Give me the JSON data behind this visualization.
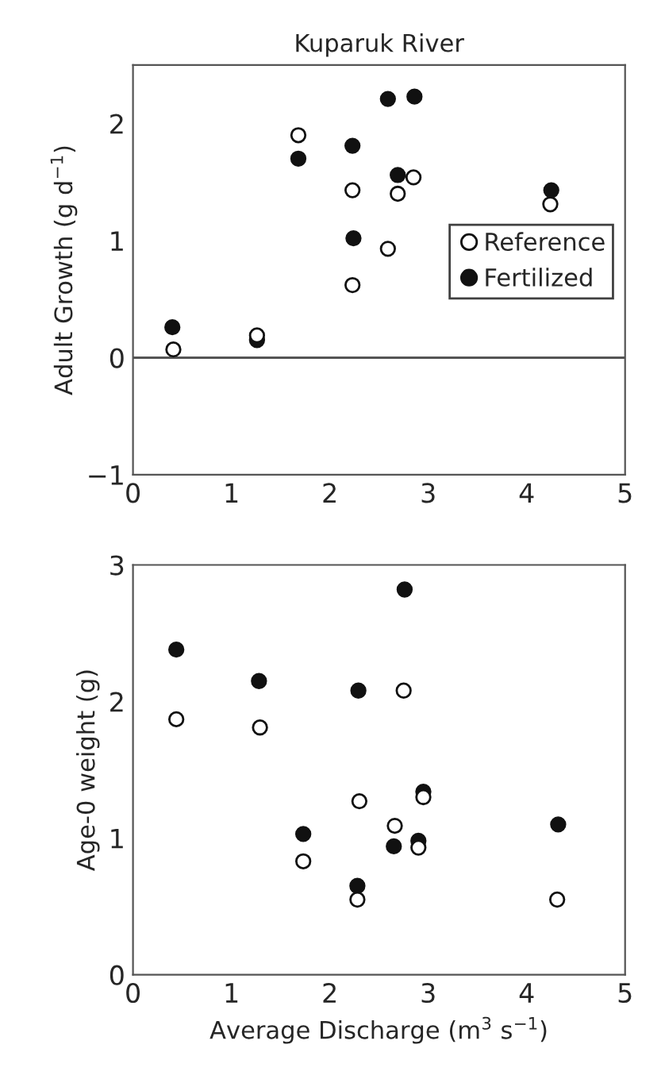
{
  "chart_data": [
    {
      "type": "scatter",
      "title": "Kuparuk River",
      "ylabel": "Adult Growth (g d$^{−1}$)",
      "xlim": [
        0,
        5
      ],
      "xticks": [
        0,
        1,
        2,
        3,
        4,
        5
      ],
      "ylim": [
        -1,
        2.5
      ],
      "yticks": [
        {
          "value": -1,
          "label": "−1"
        },
        0,
        1,
        2
      ],
      "legend": "right",
      "marker": "circle",
      "grid": false,
      "ref_lines": [
        {
          "axis": "y",
          "value": 0,
          "color": "#555555"
        }
      ],
      "series": [
        {
          "name": "Reference",
          "color": "#ffffff",
          "x": [
            0.41,
            1.26,
            1.68,
            2.23,
            2.23,
            2.59,
            2.69,
            2.85,
            4.24
          ],
          "values": [
            0.07,
            0.19,
            1.9,
            1.43,
            0.62,
            0.93,
            1.4,
            1.54,
            1.31
          ]
        },
        {
          "name": "Fertilized",
          "color": "#111111",
          "x": [
            0.4,
            1.26,
            1.68,
            2.23,
            2.24,
            2.59,
            2.86,
            2.69,
            4.25
          ],
          "values": [
            0.26,
            0.15,
            1.7,
            1.81,
            1.02,
            2.21,
            2.23,
            1.56,
            1.43
          ]
        }
      ]
    },
    {
      "type": "scatter",
      "xlabel": "Average Discharge (m$^{3}$ s$^{−1}$)",
      "ylabel": "Age-0 weight (g)",
      "xlim": [
        0,
        5
      ],
      "xticks": [
        0,
        1,
        2,
        3,
        4,
        5
      ],
      "ylim": [
        0,
        3
      ],
      "yticks": [
        0,
        1,
        2,
        3
      ],
      "marker": "circle",
      "grid": false,
      "series": [
        {
          "color": "#ffffff",
          "x": [
            0.44,
            1.29,
            2.75,
            2.3,
            1.73,
            2.28,
            2.66,
            2.9,
            2.95,
            4.31
          ],
          "values": [
            1.87,
            1.81,
            2.08,
            1.27,
            0.83,
            0.55,
            1.09,
            0.93,
            1.3,
            0.55
          ]
        },
        {
          "color": "#111111",
          "x": [
            0.44,
            1.28,
            2.29,
            2.76,
            1.73,
            2.28,
            2.65,
            2.9,
            2.95,
            4.32
          ],
          "values": [
            2.38,
            2.15,
            2.08,
            2.82,
            1.03,
            0.65,
            0.94,
            0.98,
            1.34,
            1.1
          ]
        }
      ]
    }
  ]
}
